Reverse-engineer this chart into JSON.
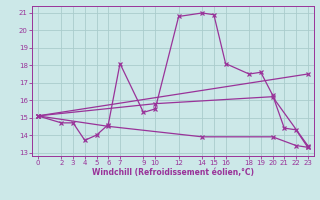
{
  "xlabel": "Windchill (Refroidissement éolien,°C)",
  "background_color": "#cce8e8",
  "grid_color": "#aacccc",
  "line_color": "#993399",
  "border_color": "#993399",
  "ylim": [
    12.8,
    21.4
  ],
  "xlim": [
    -0.5,
    23.5
  ],
  "yticks": [
    13,
    14,
    15,
    16,
    17,
    18,
    19,
    20,
    21
  ],
  "xticks": [
    0,
    2,
    3,
    4,
    5,
    6,
    7,
    9,
    10,
    12,
    14,
    15,
    16,
    18,
    19,
    20,
    21,
    22,
    23
  ],
  "lines": [
    {
      "x": [
        0,
        2,
        3,
        4,
        5,
        6,
        7,
        9,
        10,
        12,
        14,
        15,
        16,
        18,
        19,
        20,
        21,
        22,
        23
      ],
      "y": [
        15.1,
        14.7,
        14.7,
        13.7,
        14.0,
        14.6,
        18.1,
        15.3,
        15.5,
        20.8,
        21.0,
        20.9,
        18.1,
        17.5,
        17.6,
        16.3,
        14.4,
        14.3,
        13.3
      ]
    },
    {
      "x": [
        0,
        23
      ],
      "y": [
        15.1,
        17.5
      ]
    },
    {
      "x": [
        0,
        10,
        20,
        23
      ],
      "y": [
        15.1,
        15.8,
        16.2,
        13.4
      ]
    },
    {
      "x": [
        0,
        6,
        14,
        20,
        22,
        23
      ],
      "y": [
        15.1,
        14.5,
        13.9,
        13.9,
        13.4,
        13.3
      ]
    }
  ]
}
